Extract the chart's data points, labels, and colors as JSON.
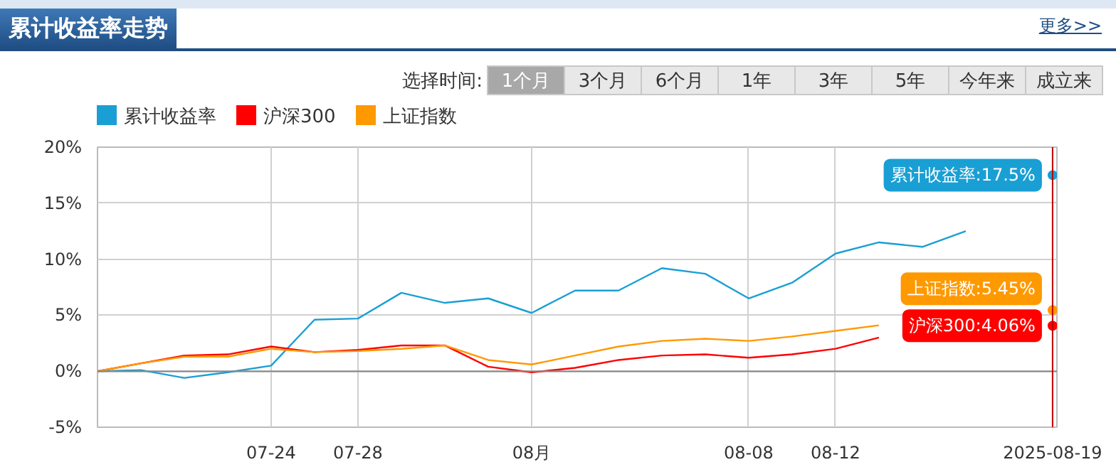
{
  "chart_data": {
    "type": "line",
    "title": "累计收益率走势",
    "annotations": [
      "更多>>",
      "选择时间:",
      "1个月",
      "3个月",
      "6个月",
      "1年",
      "3年",
      "5年",
      "今年来",
      "成立来"
    ],
    "categories": [
      null,
      null,
      null,
      null,
      "07-24",
      null,
      "07-28",
      null,
      null,
      null,
      "08月",
      null,
      null,
      null,
      null,
      "08-08",
      null,
      "08-12",
      null,
      null,
      null,
      null,
      "2025-08-19"
    ],
    "series": [
      {
        "name": "累计收益率",
        "color": "#1a9fd4",
        "values": [
          0,
          0.1,
          -0.6,
          -0.1,
          0.5,
          4.6,
          4.7,
          7.0,
          6.1,
          6.5,
          5.2,
          7.2,
          7.2,
          9.2,
          8.7,
          6.5,
          7.9,
          10.5,
          11.5,
          11.1,
          12.5,
          null,
          17.5
        ],
        "value_labels": [
          null,
          null,
          null,
          null,
          null,
          null,
          null,
          null,
          null,
          null,
          null,
          null,
          null,
          null,
          null,
          null,
          null,
          null,
          null,
          null,
          null,
          null,
          "累计收益率:17.5%"
        ]
      },
      {
        "name": "沪深300",
        "color": "#ff0000",
        "values": [
          0,
          0.7,
          1.4,
          1.5,
          2.2,
          1.7,
          1.9,
          2.3,
          2.3,
          0.4,
          -0.1,
          0.3,
          1.0,
          1.4,
          1.5,
          1.2,
          1.5,
          2.0,
          3.0,
          null,
          null,
          null,
          4.06
        ],
        "value_labels": [
          null,
          null,
          null,
          null,
          null,
          null,
          null,
          null,
          null,
          null,
          null,
          null,
          null,
          null,
          null,
          null,
          null,
          null,
          null,
          null,
          null,
          null,
          "沪深300:4.06%"
        ]
      },
      {
        "name": "上证指数",
        "color": "#ff9900",
        "values": [
          0,
          0.7,
          1.3,
          1.3,
          2.0,
          1.7,
          1.8,
          2.0,
          2.3,
          1.0,
          0.6,
          1.4,
          2.2,
          2.7,
          2.9,
          2.7,
          3.1,
          3.6,
          4.1,
          null,
          null,
          null,
          5.45
        ],
        "value_labels": [
          null,
          null,
          null,
          null,
          null,
          null,
          null,
          null,
          null,
          null,
          null,
          null,
          null,
          null,
          null,
          null,
          null,
          null,
          null,
          null,
          null,
          null,
          "上证指数:5.45%"
        ]
      }
    ],
    "ylim": [
      -5,
      20
    ],
    "yticks": [
      {
        "value": -5,
        "label": "-5%"
      },
      {
        "value": 0,
        "label": "0%"
      },
      {
        "value": 5,
        "label": "5%"
      },
      {
        "value": 10,
        "label": "10%"
      },
      {
        "value": 15,
        "label": "15%"
      },
      {
        "value": 20,
        "label": "20%"
      }
    ],
    "ref_lines": [
      {
        "axis": "y",
        "value": 0,
        "color": "#888888"
      },
      {
        "axis": "x",
        "value": "2025-08-19",
        "color": "#c00000"
      }
    ],
    "grid": true,
    "legend": "top left",
    "marker": "none",
    "line_style": "solid"
  }
}
